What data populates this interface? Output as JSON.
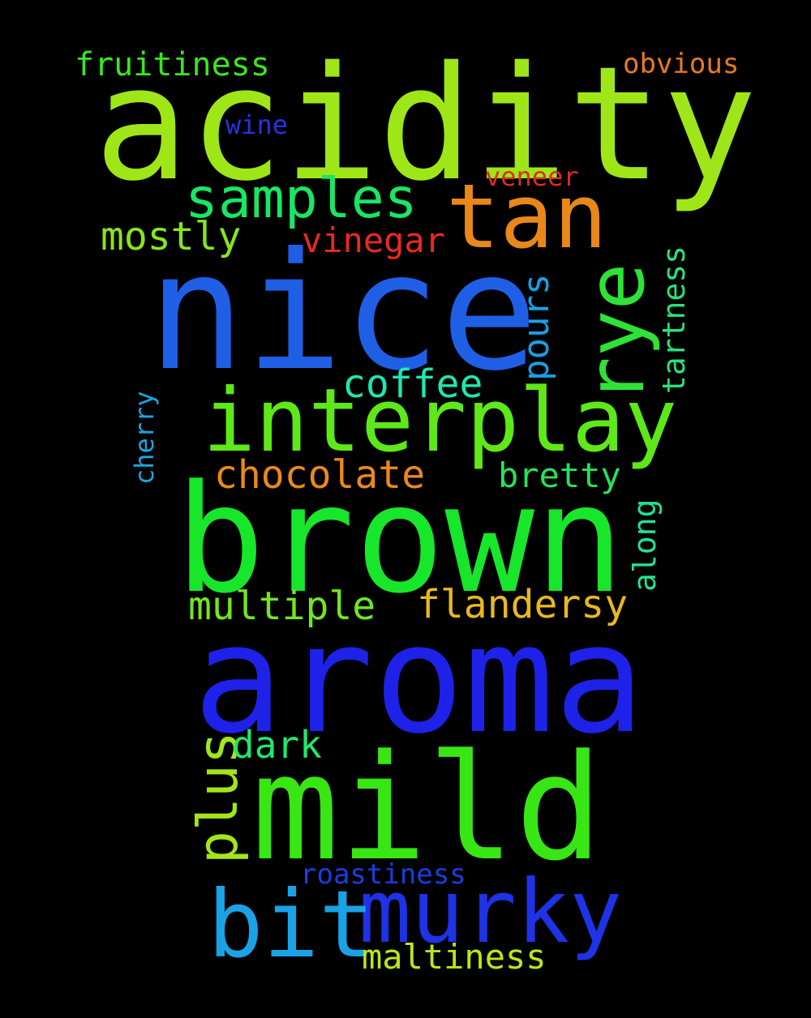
{
  "background": "#000000",
  "words": [
    {
      "id": "acidity",
      "text": "acidity",
      "color": "#9ee618",
      "vertical": false
    },
    {
      "id": "nice",
      "text": "nice",
      "color": "#1f5fe6",
      "vertical": false
    },
    {
      "id": "brown",
      "text": "brown",
      "color": "#18e62a",
      "vertical": false
    },
    {
      "id": "aroma",
      "text": "aroma",
      "color": "#1e22e8",
      "vertical": false
    },
    {
      "id": "mild",
      "text": "mild",
      "color": "#38e614",
      "vertical": false
    },
    {
      "id": "interplay",
      "text": "interplay",
      "color": "#5ee818",
      "vertical": false
    },
    {
      "id": "tan",
      "text": "tan",
      "color": "#e8881a",
      "vertical": false
    },
    {
      "id": "rye",
      "text": "rye",
      "color": "#2ee238",
      "vertical": true
    },
    {
      "id": "murky",
      "text": "murky",
      "color": "#1e32e6",
      "vertical": false
    },
    {
      "id": "bit",
      "text": "bit",
      "color": "#1aa2e6",
      "vertical": false
    },
    {
      "id": "samples",
      "text": "samples",
      "color": "#18e664",
      "vertical": false
    },
    {
      "id": "flandersy",
      "text": "flandersy",
      "color": "#e8b822",
      "vertical": false
    },
    {
      "id": "multiple",
      "text": "multiple",
      "color": "#72e61e",
      "vertical": false
    },
    {
      "id": "plus",
      "text": "plus",
      "color": "#a2e61a",
      "vertical": true
    },
    {
      "id": "chocolate",
      "text": "chocolate",
      "color": "#e88a1a",
      "vertical": false
    },
    {
      "id": "coffee",
      "text": "coffee",
      "color": "#1ee8b2",
      "vertical": false
    },
    {
      "id": "mostly",
      "text": "mostly",
      "color": "#86e61e",
      "vertical": false
    },
    {
      "id": "vinegar",
      "text": "vinegar",
      "color": "#e82a22",
      "vertical": false
    },
    {
      "id": "dark",
      "text": "dark",
      "color": "#22e66a",
      "vertical": false
    },
    {
      "id": "pours",
      "text": "pours",
      "color": "#1a9ee6",
      "vertical": true
    },
    {
      "id": "bretty",
      "text": "bretty",
      "color": "#26e25a",
      "vertical": false
    },
    {
      "id": "fruitiness",
      "text": "fruitiness",
      "color": "#3ae61e",
      "vertical": false
    },
    {
      "id": "maltiness",
      "text": "maltiness",
      "color": "#bce618",
      "vertical": false
    },
    {
      "id": "along",
      "text": "along",
      "color": "#22e290",
      "vertical": true
    },
    {
      "id": "tartness",
      "text": "tartness",
      "color": "#28e27a",
      "vertical": true
    },
    {
      "id": "obvious",
      "text": "obvious",
      "color": "#e87a1e",
      "vertical": false
    },
    {
      "id": "roastiness",
      "text": "roastiness",
      "color": "#1a3ee0",
      "vertical": false
    },
    {
      "id": "veneer",
      "text": "veneer",
      "color": "#e02a22",
      "vertical": false
    },
    {
      "id": "wine",
      "text": "wine",
      "color": "#2434e0",
      "vertical": false
    },
    {
      "id": "cherry",
      "text": "cherry",
      "color": "#1aa6e0",
      "vertical": true
    }
  ]
}
